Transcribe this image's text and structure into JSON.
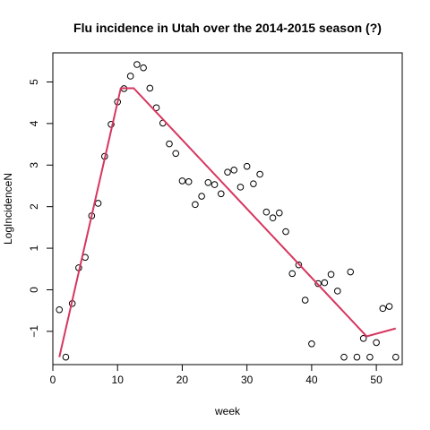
{
  "chart_data": {
    "type": "scatter",
    "title": "Flu incidence in Utah over the 2014-2015 season (?)",
    "xlabel": "week",
    "ylabel": "LogIncidenceN",
    "xlim": [
      0,
      54
    ],
    "ylim": [
      -1.8,
      5.7
    ],
    "x_ticks": [
      0,
      10,
      20,
      30,
      40,
      50
    ],
    "y_ticks": [
      -1,
      0,
      1,
      2,
      3,
      4,
      5
    ],
    "grid": false,
    "legend": "none",
    "colors": {
      "points": "#000000",
      "fit_line": "#d6365f"
    },
    "points": {
      "x": [
        1,
        2,
        3,
        4,
        5,
        6,
        7,
        8,
        9,
        10,
        11,
        12,
        13,
        14,
        15,
        16,
        17,
        18,
        19,
        20,
        21,
        22,
        23,
        24,
        25,
        26,
        27,
        28,
        29,
        30,
        31,
        32,
        33,
        34,
        35,
        36,
        37,
        38,
        39,
        40,
        41,
        42,
        43,
        44,
        45,
        46,
        47,
        48,
        49,
        50,
        51,
        52,
        53
      ],
      "y": [
        -0.48,
        -1.62,
        -0.33,
        0.53,
        0.78,
        1.78,
        2.08,
        3.21,
        3.98,
        4.52,
        4.84,
        5.14,
        5.42,
        5.34,
        4.85,
        4.38,
        4.01,
        3.51,
        3.28,
        2.62,
        2.6,
        2.05,
        2.25,
        2.58,
        2.53,
        2.31,
        2.83,
        2.88,
        2.47,
        2.97,
        2.55,
        2.78,
        1.87,
        1.73,
        1.85,
        1.4,
        0.39,
        0.6,
        -0.25,
        -1.3,
        0.15,
        0.17,
        0.37,
        -0.03,
        -1.62,
        0.43,
        -1.62,
        -1.17,
        -1.62,
        -1.27,
        -0.45,
        -0.4,
        -1.62
      ]
    },
    "fit_line": {
      "x": [
        1,
        10.5,
        12.5,
        48.5,
        53
      ],
      "y": [
        -1.62,
        4.85,
        4.85,
        -1.12,
        -0.93
      ]
    }
  }
}
